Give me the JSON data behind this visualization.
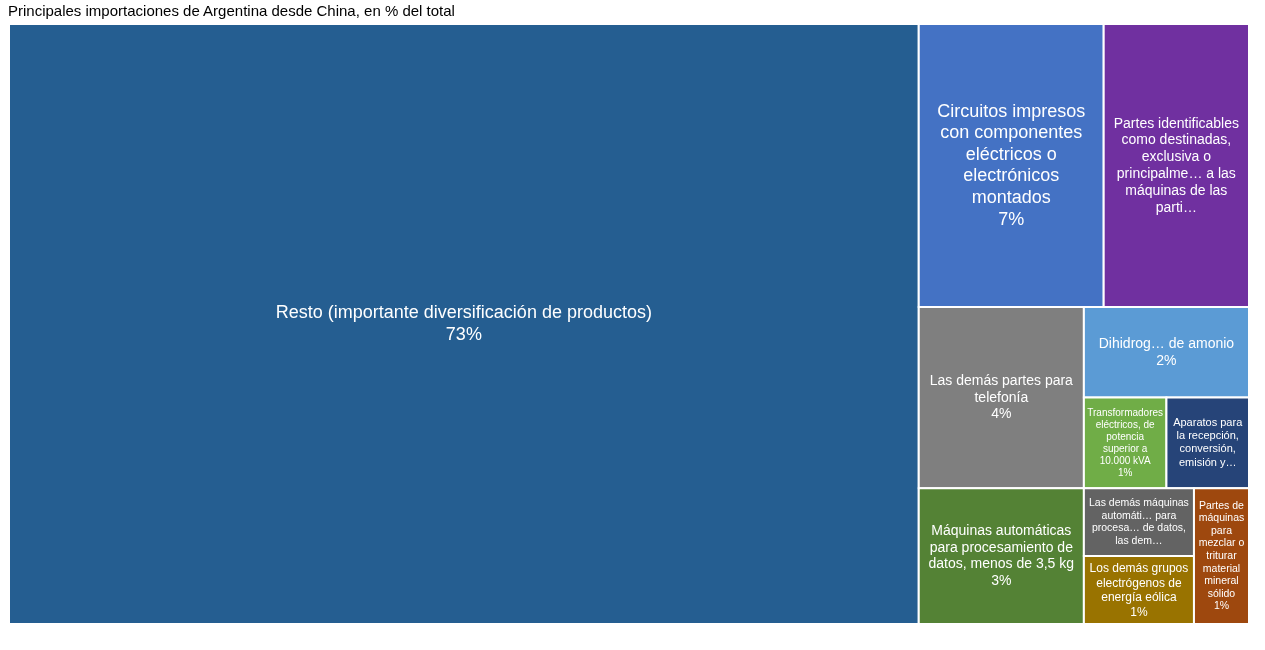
{
  "chart_data": {
    "type": "other",
    "title": "Principales importaciones de Argentina desde China, en % del total",
    "categories": [
      "Resto (importante diversificación de productos)",
      "Circuitos impresos con componentes eléctricos o electrónicos montados",
      "Partes identificables como destinadas, exclusiva o principalme… a las máquinas de las parti…",
      "Las demás partes para telefonía",
      "Máquinas automáticas para procesamiento de datos, menos de 3,5 kg",
      "Dihidrog… de amonio",
      "Transformadores eléctricos, de potencia superior a 10.000 kVA",
      "Aparatos para la recepción, conversión, emisión y…",
      "Las demás máquinas automáti… para procesa… de datos, las dem…",
      "Los demás grupos electrógenos de energía eólica",
      "Partes de máquinas para mezclar o triturar material mineral sólido"
    ],
    "values": [
      73,
      7,
      null,
      4,
      3,
      2,
      1,
      null,
      null,
      1,
      1
    ],
    "value_labels": [
      "73%",
      "7%",
      null,
      "4%",
      "3%",
      "2%",
      "1%",
      null,
      null,
      "1%",
      "1%"
    ],
    "colors": [
      "#255e91",
      "#4472c4",
      "#7030a0",
      "#7f7f7f",
      "#548235",
      "#5b9bd5",
      "#70ad47",
      "#264478",
      "#636363",
      "#997300",
      "#9e480e"
    ]
  }
}
